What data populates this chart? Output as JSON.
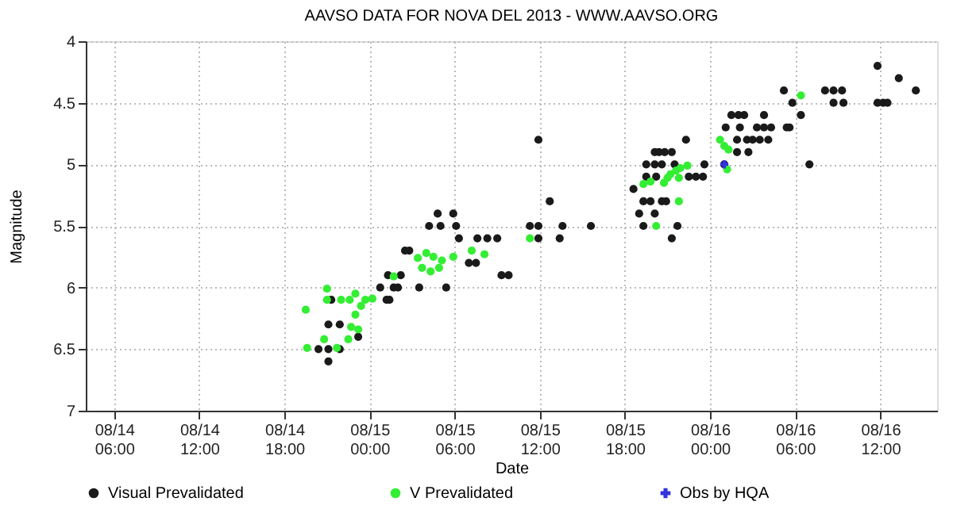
{
  "chart_data": {
    "type": "scatter",
    "title": "AAVSO DATA FOR NOVA DEL 2013 - WWW.AAVSO.ORG",
    "xlabel": "Date",
    "ylabel": "Magnitude",
    "xlim": [
      "2013-08-14T04:00",
      "2013-08-16T16:00"
    ],
    "ylim": [
      7,
      4
    ],
    "xticks": [
      {
        "value": "2013-08-14T06:00",
        "label": "08/14 06:00"
      },
      {
        "value": "2013-08-14T12:00",
        "label": "08/14 12:00"
      },
      {
        "value": "2013-08-14T18:00",
        "label": "08/14 18:00"
      },
      {
        "value": "2013-08-15T00:00",
        "label": "08/15 00:00"
      },
      {
        "value": "2013-08-15T06:00",
        "label": "08/15 06:00"
      },
      {
        "value": "2013-08-15T12:00",
        "label": "08/15 12:00"
      },
      {
        "value": "2013-08-15T18:00",
        "label": "08/15 18:00"
      },
      {
        "value": "2013-08-16T00:00",
        "label": "08/16 00:00"
      },
      {
        "value": "2013-08-16T06:00",
        "label": "08/16 06:00"
      },
      {
        "value": "2013-08-16T12:00",
        "label": "08/16 12:00"
      }
    ],
    "yticks": [
      4,
      4.5,
      5,
      5.5,
      6,
      6.5,
      7
    ],
    "grid": true,
    "legend": "bottom",
    "series": [
      {
        "name": "Visual Prevalidated",
        "color": "#1a1a1a",
        "marker": "circle",
        "x": [
          "2013-08-14T21:06",
          "2013-08-14T20:24",
          "2013-08-14T21:06",
          "2013-08-14T21:54",
          "2013-08-14T21:06",
          "2013-08-14T21:54",
          "2013-08-14T21:18",
          "2013-08-14T23:12",
          "2013-08-15T00:45",
          "2013-08-15T01:12",
          "2013-08-15T01:24",
          "2013-08-15T01:42",
          "2013-08-15T02:00",
          "2013-08-15T01:18",
          "2013-08-15T02:12",
          "2013-08-15T02:30",
          "2013-08-15T02:48",
          "2013-08-15T03:30",
          "2013-08-15T05:24",
          "2013-08-15T04:48",
          "2013-08-15T05:54",
          "2013-08-15T04:12",
          "2013-08-15T05:00",
          "2013-08-15T06:06",
          "2013-08-15T06:18",
          "2013-08-15T07:36",
          "2013-08-15T08:18",
          "2013-08-15T09:00",
          "2013-08-15T07:00",
          "2013-08-15T07:30",
          "2013-08-15T09:18",
          "2013-08-15T09:48",
          "2013-08-15T11:18",
          "2013-08-15T11:54",
          "2013-08-15T11:54",
          "2013-08-15T12:42",
          "2013-08-15T11:54",
          "2013-08-15T13:24",
          "2013-08-15T13:36",
          "2013-08-15T15:36",
          "2013-08-15T18:36",
          "2013-08-15T19:18",
          "2013-08-15T19:48",
          "2013-08-15T20:36",
          "2013-08-15T20:54",
          "2013-08-15T19:00",
          "2013-08-15T20:06",
          "2013-08-15T19:18",
          "2013-08-15T21:42",
          "2013-08-15T21:18",
          "2013-08-15T20:06",
          "2013-08-15T20:24",
          "2013-08-15T20:48",
          "2013-08-15T21:18",
          "2013-08-15T19:30",
          "2013-08-15T20:06",
          "2013-08-15T20:36",
          "2013-08-15T21:30",
          "2013-08-15T19:30",
          "2013-08-15T20:12",
          "2013-08-15T22:30",
          "2013-08-15T23:00",
          "2013-08-15T23:30",
          "2013-08-15T23:36",
          "2013-08-15T22:18",
          "2013-08-16T01:54",
          "2013-08-16T02:36",
          "2013-08-16T03:00",
          "2013-08-16T03:30",
          "2013-08-16T04:06",
          "2013-08-16T01:06",
          "2013-08-16T02:06",
          "2013-08-16T03:18",
          "2013-08-16T03:48",
          "2013-08-16T04:18",
          "2013-08-16T01:30",
          "2013-08-16T02:00",
          "2013-08-16T02:24",
          "2013-08-16T03:48",
          "2013-08-16T05:24",
          "2013-08-16T05:36",
          "2013-08-16T05:12",
          "2013-08-16T05:48",
          "2013-08-16T06:24",
          "2013-08-16T07:00",
          "2013-08-16T08:06",
          "2013-08-16T08:42",
          "2013-08-16T09:18",
          "2013-08-16T08:42",
          "2013-08-16T09:24",
          "2013-08-16T11:48",
          "2013-08-16T11:48",
          "2013-08-16T12:12",
          "2013-08-16T12:30",
          "2013-08-16T13:18",
          "2013-08-16T14:30",
          "2013-08-16T01:00",
          "2013-08-16T01:54",
          "2013-08-16T02:42"
        ],
        "values": [
          6.6,
          6.5,
          6.5,
          6.5,
          6.3,
          6.3,
          6.1,
          6.4,
          6.0,
          6.1,
          6.1,
          6.0,
          6.0,
          5.9,
          5.9,
          5.7,
          5.7,
          6.0,
          6.0,
          5.4,
          5.4,
          5.5,
          5.5,
          5.5,
          5.6,
          5.6,
          5.6,
          5.6,
          5.8,
          5.8,
          5.9,
          5.9,
          5.5,
          5.5,
          4.8,
          5.3,
          5.6,
          5.6,
          5.5,
          5.5,
          5.2,
          5.3,
          5.3,
          5.3,
          5.3,
          5.4,
          5.4,
          5.5,
          5.5,
          5.6,
          4.9,
          4.9,
          4.9,
          4.9,
          5.0,
          5.0,
          5.0,
          5.0,
          5.1,
          5.1,
          5.1,
          5.1,
          5.1,
          5.0,
          4.8,
          4.8,
          4.8,
          4.8,
          4.8,
          4.8,
          4.7,
          4.7,
          4.7,
          4.7,
          4.7,
          4.6,
          4.6,
          4.6,
          4.6,
          4.7,
          4.7,
          4.4,
          4.5,
          4.6,
          5.0,
          4.4,
          4.4,
          4.4,
          4.5,
          4.5,
          4.2,
          4.5,
          4.5,
          4.5,
          4.3,
          4.4,
          5.0,
          4.9,
          4.9
        ]
      },
      {
        "name": "V Prevalidated",
        "color": "#33ee33",
        "marker": "circle",
        "x": [
          "2013-08-14T19:30",
          "2013-08-14T19:36",
          "2013-08-14T20:48",
          "2013-08-14T21:00",
          "2013-08-14T21:00",
          "2013-08-14T22:00",
          "2013-08-14T21:42",
          "2013-08-14T23:00",
          "2013-08-15T00:12",
          "2013-08-15T01:42",
          "2013-08-14T22:36",
          "2013-08-14T22:30",
          "2013-08-14T22:42",
          "2013-08-14T23:00",
          "2013-08-14T23:24",
          "2013-08-14T23:42",
          "2013-08-14T23:12",
          "2013-08-15T03:24",
          "2013-08-15T04:00",
          "2013-08-15T04:30",
          "2013-08-15T05:06",
          "2013-08-15T03:42",
          "2013-08-15T04:18",
          "2013-08-15T04:54",
          "2013-08-15T05:54",
          "2013-08-15T07:12",
          "2013-08-15T08:06",
          "2013-08-15T11:18",
          "2013-08-15T20:12",
          "2013-08-15T21:48",
          "2013-08-15T19:18",
          "2013-08-15T19:48",
          "2013-08-15T20:45",
          "2013-08-15T21:12",
          "2013-08-15T21:36",
          "2013-08-15T21:54",
          "2013-08-15T22:24",
          "2013-08-15T21:00",
          "2013-08-15T21:48",
          "2013-08-16T00:42",
          "2013-08-16T01:18",
          "2013-08-16T01:00",
          "2013-08-16T01:12",
          "2013-08-16T06:24"
        ],
        "values": [
          6.18,
          6.49,
          6.42,
          6.01,
          6.1,
          6.1,
          6.49,
          6.05,
          6.09,
          5.91,
          6.1,
          6.42,
          6.32,
          6.22,
          6.15,
          6.1,
          6.34,
          5.76,
          5.72,
          5.75,
          5.78,
          5.84,
          5.87,
          5.84,
          5.75,
          5.7,
          5.73,
          5.6,
          5.5,
          5.3,
          5.16,
          5.14,
          5.15,
          5.08,
          5.05,
          5.03,
          5.01,
          5.11,
          5.11,
          4.8,
          4.88,
          4.85,
          5.04,
          4.44
        ]
      },
      {
        "name": "Obs by HQA",
        "color": "#3333dd",
        "marker": "cross",
        "x": [
          "2013-08-16T01:00"
        ],
        "values": [
          5.0
        ]
      }
    ]
  }
}
